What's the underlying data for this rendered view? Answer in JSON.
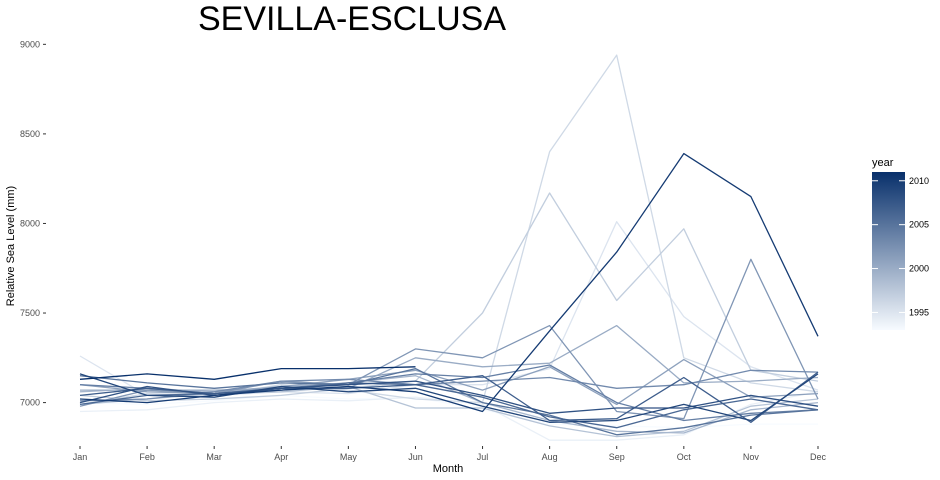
{
  "chart_data": {
    "type": "line",
    "title": "SEVILLA-ESCLUSA",
    "xlabel": "Month",
    "ylabel": "Relative Sea Level (mm)",
    "categories": [
      "Jan",
      "Feb",
      "Mar",
      "Apr",
      "May",
      "Jun",
      "Jul",
      "Aug",
      "Sep",
      "Oct",
      "Nov",
      "Dec"
    ],
    "ylim": [
      6780,
      9080
    ],
    "yticks": [
      7000,
      7500,
      8000,
      8500,
      9000
    ],
    "grid": false,
    "legend": {
      "title": "year",
      "placement": "right",
      "type": "colorbar",
      "range": [
        1993,
        2011
      ],
      "ticks": [
        1995,
        2000,
        2005,
        2010
      ],
      "color_low": "#f7fbff",
      "color_high": "#08306b"
    },
    "series": [
      {
        "year": 1993,
        "values": [
          7000,
          6990,
          7010,
          7040,
          7020,
          7030,
          6960,
          6880,
          6870,
          6860,
          6880,
          6880
        ]
      },
      {
        "year": 1994,
        "values": [
          6950,
          6960,
          7000,
          7020,
          7010,
          7030,
          6990,
          6790,
          6790,
          6820,
          6990,
          7060
        ]
      },
      {
        "year": 1995,
        "values": [
          7260,
          7040,
          7040,
          7060,
          7050,
          7100,
          7100,
          7190,
          8010,
          7480,
          7200,
          7070
        ]
      },
      {
        "year": 1996,
        "values": [
          6990,
          7050,
          7040,
          7100,
          7070,
          7020,
          7000,
          8400,
          8940,
          7250,
          7110,
          7060
        ]
      },
      {
        "year": 1997,
        "values": [
          7040,
          7010,
          7020,
          7040,
          7080,
          7120,
          7500,
          8170,
          7570,
          7970,
          7180,
          7120
        ]
      },
      {
        "year": 1998,
        "values": [
          6990,
          7020,
          7050,
          7060,
          7090,
          6970,
          6970,
          6870,
          6810,
          6840,
          6980,
          7020
        ]
      },
      {
        "year": 1999,
        "values": [
          7060,
          7080,
          7060,
          7090,
          7110,
          7150,
          7000,
          6900,
          6840,
          6830,
          6960,
          7000
        ]
      },
      {
        "year": 2000,
        "values": [
          7070,
          7070,
          7070,
          7080,
          7080,
          7250,
          7200,
          7220,
          7430,
          7110,
          7120,
          7140
        ]
      },
      {
        "year": 2001,
        "values": [
          7100,
          7060,
          7050,
          7090,
          7130,
          7180,
          7070,
          7200,
          6990,
          7240,
          7030,
          7050
        ]
      },
      {
        "year": 2002,
        "values": [
          6980,
          7070,
          7050,
          7120,
          7100,
          7300,
          7250,
          7430,
          6950,
          6910,
          7800,
          7020
        ]
      },
      {
        "year": 2003,
        "values": [
          7010,
          7020,
          7060,
          7120,
          7130,
          7100,
          7120,
          7140,
          7080,
          7100,
          7180,
          7170
        ]
      },
      {
        "year": 2004,
        "values": [
          7100,
          7080,
          7050,
          7080,
          7110,
          7160,
          7140,
          7210,
          7000,
          6900,
          6940,
          6960
        ]
      },
      {
        "year": 2005,
        "values": [
          7150,
          7110,
          7080,
          7110,
          7100,
          7190,
          7000,
          6930,
          6820,
          6860,
          6930,
          6960
        ]
      },
      {
        "year": 2006,
        "values": [
          6990,
          7040,
          7050,
          7070,
          7110,
          7100,
          7030,
          6920,
          6860,
          6960,
          7020,
          6960
        ]
      },
      {
        "year": 2007,
        "values": [
          7040,
          7080,
          7050,
          7080,
          7080,
          7100,
          7150,
          6900,
          6910,
          7140,
          6890,
          7170
        ]
      },
      {
        "year": 2008,
        "values": [
          7000,
          7090,
          7040,
          7080,
          7100,
          7120,
          7040,
          6940,
          6970,
          6970,
          7040,
          6980
        ]
      },
      {
        "year": 2009,
        "values": [
          7160,
          7040,
          7030,
          7090,
          7060,
          7080,
          6980,
          6890,
          6900,
          6990,
          6900,
          7160
        ]
      },
      {
        "year": 2010,
        "values": [
          7020,
          7000,
          7040,
          7070,
          7090,
          7060,
          6950,
          7400,
          7840,
          8390,
          8150,
          7370
        ]
      },
      {
        "year": 2011,
        "values": [
          7130,
          7160,
          7130,
          7190,
          7190,
          7200,
          null,
          null,
          null,
          null,
          null,
          null
        ]
      }
    ]
  }
}
